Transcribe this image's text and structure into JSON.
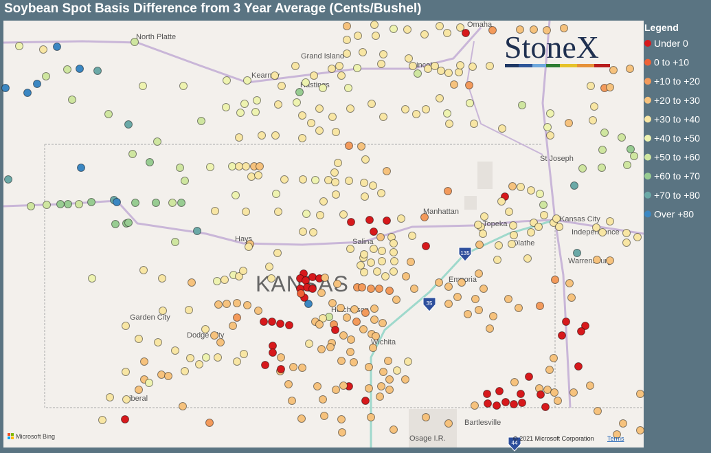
{
  "header": {
    "title": "Soybean Spot Basis Difference from 3 Year Average (Cents/Bushel)"
  },
  "legend": {
    "title": "Legend",
    "items": [
      {
        "label": "Under 0",
        "color": "#d7191c"
      },
      {
        "label": "0 to +10",
        "color": "#ef6237"
      },
      {
        "label": "+10 to +20",
        "color": "#f39a5b"
      },
      {
        "label": "+20 to +30",
        "color": "#f6c27d"
      },
      {
        "label": "+30 to +40",
        "color": "#f8e6a4"
      },
      {
        "label": "+40 to +50",
        "color": "#eef3b0"
      },
      {
        "label": "+50 to +60",
        "color": "#cfe6a0"
      },
      {
        "label": "+60 to +70",
        "color": "#98cc92"
      },
      {
        "label": "+70 to +80",
        "color": "#6ba9a7"
      },
      {
        "label": "Over +80",
        "color": "#3b87c2"
      }
    ]
  },
  "map": {
    "places": [
      "North Platte",
      "Grand Island",
      "Omaha",
      "Kearney",
      "Hastings",
      "Lincoln",
      "St Joseph",
      "Manhattan",
      "Topeka",
      "Kansas City",
      "Independence",
      "Olathe",
      "Hays",
      "Salina",
      "Warrensburg",
      "Emporia",
      "Hutchinson",
      "Garden City",
      "Dodge City",
      "Wichita",
      "Liberal",
      "Bartlesville",
      "Osage I.R."
    ],
    "state_label": "KANSAS",
    "shields": [
      "135",
      "35",
      "44"
    ],
    "logo": "StoneX",
    "attribution": "Microsoft Bing",
    "copyright": "© 2021 Microsoft Corporation",
    "terms": "Terms"
  }
}
